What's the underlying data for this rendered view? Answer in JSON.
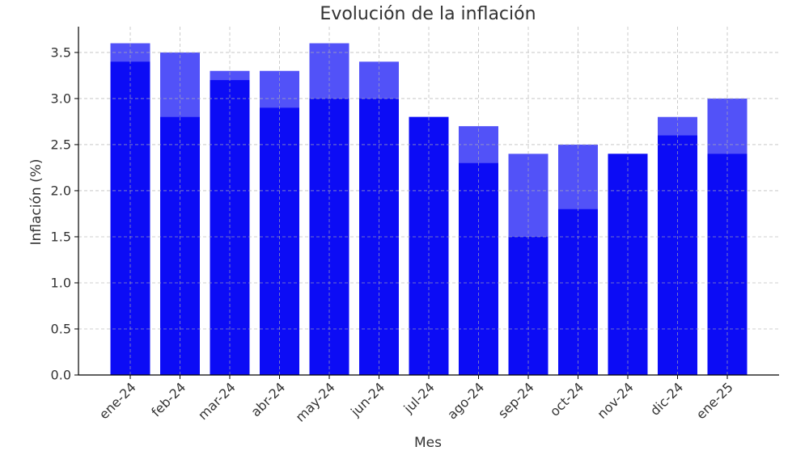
{
  "chart_data": {
    "type": "bar",
    "title": "Evolución de la inflación",
    "xlabel": "Mes",
    "ylabel": "Inflación (%)",
    "categories": [
      "ene-24",
      "feb-24",
      "mar-24",
      "abr-24",
      "may-24",
      "jun-24",
      "jul-24",
      "ago-24",
      "sep-24",
      "oct-24",
      "nov-24",
      "dic-24",
      "ene-25"
    ],
    "series": [
      {
        "values": [
          3.6,
          3.5,
          3.3,
          3.3,
          3.6,
          3.4,
          2.8,
          2.7,
          2.4,
          2.5,
          2.4,
          2.8,
          3.0
        ],
        "color": "#5252f8"
      },
      {
        "values": [
          3.4,
          2.8,
          3.2,
          2.9,
          3.0,
          3.0,
          2.8,
          2.3,
          1.5,
          1.8,
          2.4,
          2.6,
          2.4
        ],
        "color": "#0c0cf5"
      }
    ],
    "ylim": [
      0,
      3.78
    ],
    "yticks": [
      0.0,
      0.5,
      1.0,
      1.5,
      2.0,
      2.5,
      3.0,
      3.5
    ],
    "ytick_labels": [
      "0.0",
      "0.5",
      "1.0",
      "1.5",
      "2.0",
      "2.5",
      "3.0",
      "3.5"
    ],
    "grid": true,
    "legend": "none"
  }
}
